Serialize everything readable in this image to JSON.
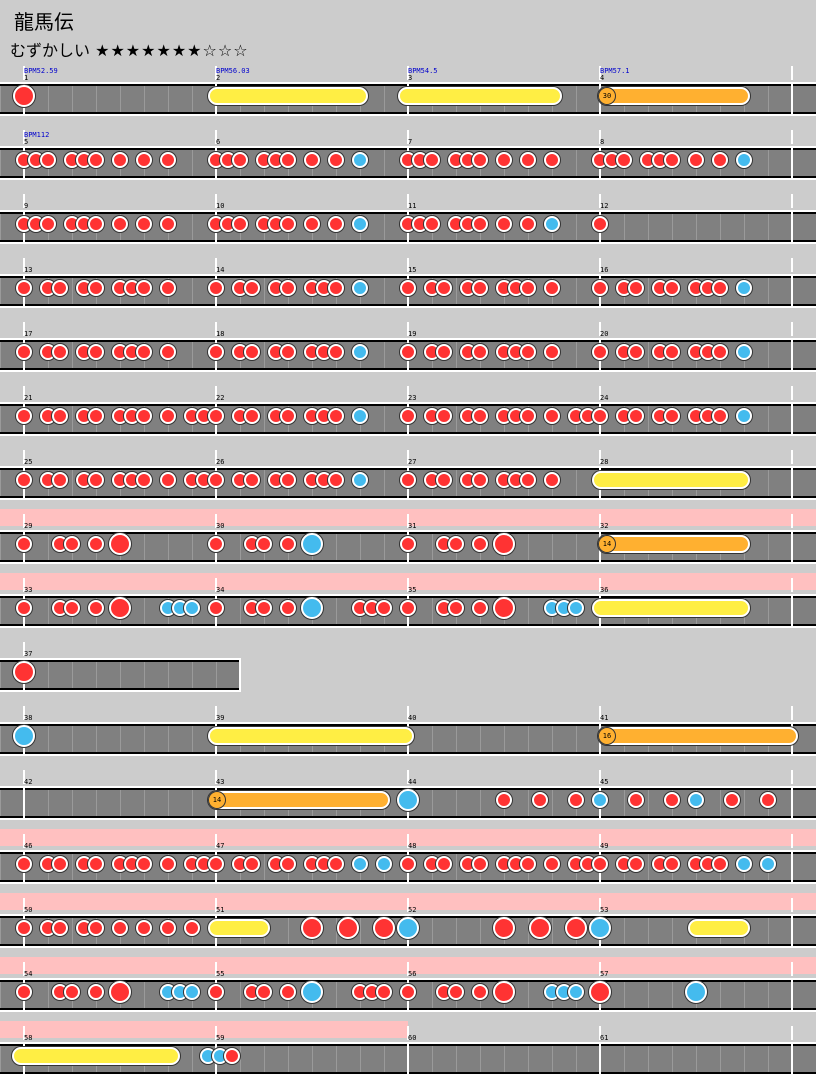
{
  "song": {
    "title": "龍馬伝"
  },
  "difficulty": {
    "label": "むずかしい",
    "stars": "★★★★★★★☆☆☆"
  },
  "colors": {
    "don": "#ff3333",
    "ka": "#44bbee",
    "roll": "#ffee44",
    "balloon": "#ffb030",
    "gogo": "#ffc0c0",
    "track": "#808080",
    "bpm_text": "#0000cc"
  },
  "rows": [
    {
      "measures": [
        "1",
        "2",
        "3",
        "4"
      ],
      "bpm": [
        "BPM52.59",
        "BPM56.03",
        "BPM54.5",
        "BPM57.1"
      ],
      "gogo": false
    },
    {
      "measures": [
        "5",
        "6",
        "7",
        "8"
      ],
      "bpm": [
        "BPM112",
        "",
        "",
        ""
      ],
      "gogo": false
    },
    {
      "measures": [
        "9",
        "10",
        "11",
        "12"
      ],
      "bpm": [
        "",
        "",
        "",
        ""
      ],
      "gogo": false
    },
    {
      "measures": [
        "13",
        "14",
        "15",
        "16"
      ],
      "bpm": [
        "",
        "",
        "",
        ""
      ],
      "gogo": false
    },
    {
      "measures": [
        "17",
        "18",
        "19",
        "20"
      ],
      "bpm": [
        "",
        "",
        "",
        ""
      ],
      "gogo": false
    },
    {
      "measures": [
        "21",
        "22",
        "23",
        "24"
      ],
      "bpm": [
        "",
        "",
        "",
        ""
      ],
      "gogo": false
    },
    {
      "measures": [
        "25",
        "26",
        "27",
        "28"
      ],
      "bpm": [
        "",
        "",
        "",
        ""
      ],
      "gogo": false
    },
    {
      "measures": [
        "29",
        "30",
        "31",
        "32"
      ],
      "bpm": [
        "",
        "",
        "",
        ""
      ],
      "gogo": true
    },
    {
      "measures": [
        "33",
        "34",
        "35",
        "36"
      ],
      "bpm": [
        "",
        "",
        "",
        ""
      ],
      "gogo": true
    },
    {
      "measures": [
        "37"
      ],
      "bpm": [
        ""
      ],
      "gogo": false
    },
    {
      "measures": [
        "38",
        "39",
        "40",
        "41"
      ],
      "bpm": [
        "",
        "",
        "",
        ""
      ],
      "gogo": false
    },
    {
      "measures": [
        "42",
        "43",
        "44",
        "45"
      ],
      "bpm": [
        "",
        "",
        "",
        ""
      ],
      "gogo": false
    },
    {
      "measures": [
        "46",
        "47",
        "48",
        "49"
      ],
      "bpm": [
        "",
        "",
        "",
        ""
      ],
      "gogo": true
    },
    {
      "measures": [
        "50",
        "51",
        "52",
        "53"
      ],
      "bpm": [
        "",
        "",
        "",
        ""
      ],
      "gogo": true
    },
    {
      "measures": [
        "54",
        "55",
        "56",
        "57"
      ],
      "bpm": [
        "",
        "",
        "",
        ""
      ],
      "gogo": true
    },
    {
      "measures": [
        "58",
        "59",
        "60",
        "61"
      ],
      "bpm": [
        "",
        "",
        "",
        ""
      ],
      "gogo": "half"
    }
  ],
  "balloons": [
    {
      "row": 0,
      "hits": "30"
    },
    {
      "row": 7,
      "hits": "14"
    },
    {
      "row": 10,
      "hits": "16"
    },
    {
      "row": 11,
      "hits": "14"
    }
  ]
}
